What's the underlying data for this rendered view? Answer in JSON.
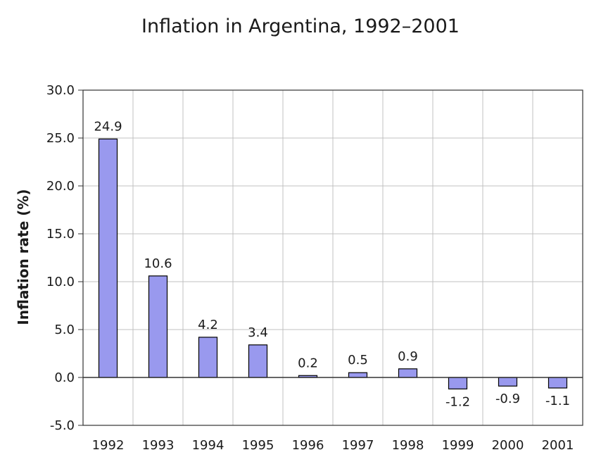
{
  "chart_data": {
    "type": "bar",
    "title": "Inflation in Argentina, 1992–2001",
    "xlabel": "",
    "ylabel": "Inflation rate (%)",
    "categories": [
      "1992",
      "1993",
      "1994",
      "1995",
      "1996",
      "1997",
      "1998",
      "1999",
      "2000",
      "2001"
    ],
    "values": [
      24.9,
      10.6,
      4.2,
      3.4,
      0.2,
      0.5,
      0.9,
      -1.2,
      -0.9,
      -1.1
    ],
    "data_labels": [
      "24.9",
      "10.6",
      "4.2",
      "3.4",
      "0.2",
      "0.5",
      "0.9",
      "-1.2",
      "-0.9",
      "-1.1"
    ],
    "ylim": [
      -5.0,
      30.0
    ],
    "yticks": [
      30.0,
      25.0,
      20.0,
      15.0,
      10.0,
      5.0,
      0.0,
      -5.0
    ],
    "ytick_labels": [
      "30.0",
      "25.0",
      "20.0",
      "15.0",
      "10.0",
      "5.0",
      "0.0",
      "-5.0"
    ],
    "grid": true,
    "legend": "none",
    "colors": {
      "bar_fill": "#9999ee",
      "bar_stroke": "#000000",
      "grid": "#c0c0c0",
      "axis": "#333333",
      "background": "#ffffff"
    }
  }
}
